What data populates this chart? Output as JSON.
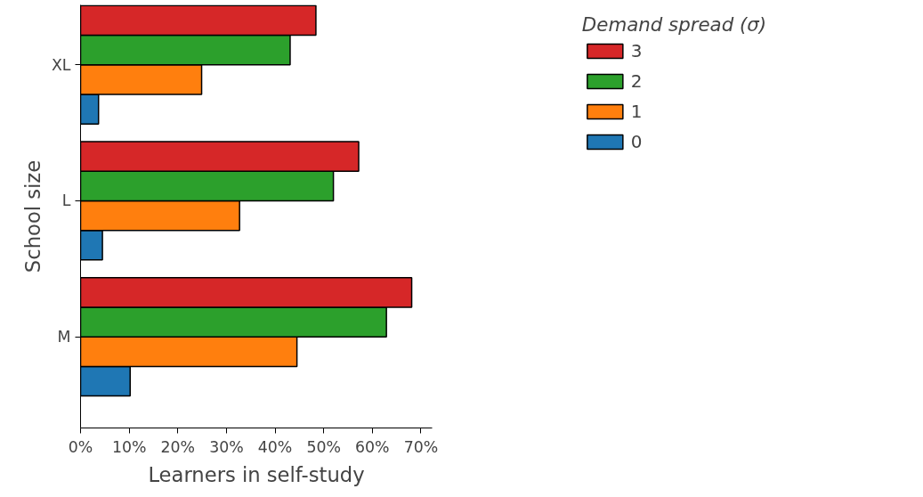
{
  "chart_data": {
    "type": "bar",
    "orientation": "horizontal",
    "xlabel": "Learners in self-study",
    "ylabel": "School size",
    "legend_title": "Demand spread (σ)",
    "categories": [
      "XL",
      "L",
      "M"
    ],
    "series": [
      {
        "name": "0",
        "color": "#1f77b4",
        "values": [
          3.7,
          4.5,
          10.2
        ]
      },
      {
        "name": "1",
        "color": "#ff7f0e",
        "values": [
          24.9,
          32.7,
          44.5
        ]
      },
      {
        "name": "2",
        "color": "#2ca02c",
        "values": [
          43.1,
          52.0,
          62.9
        ]
      },
      {
        "name": "3",
        "color": "#d62728",
        "values": [
          48.4,
          57.2,
          68.1
        ]
      }
    ],
    "xlim": [
      0,
      72.3
    ],
    "xticks": [
      {
        "value": 0,
        "label": "0%"
      },
      {
        "value": 10,
        "label": "10%"
      },
      {
        "value": 20,
        "label": "20%"
      },
      {
        "value": 30,
        "label": "30%"
      },
      {
        "value": 40,
        "label": "40%"
      },
      {
        "value": 50,
        "label": "50%"
      },
      {
        "value": 60,
        "label": "60%"
      },
      {
        "value": 70,
        "label": "70%"
      }
    ],
    "grid": false,
    "legend": "right"
  }
}
